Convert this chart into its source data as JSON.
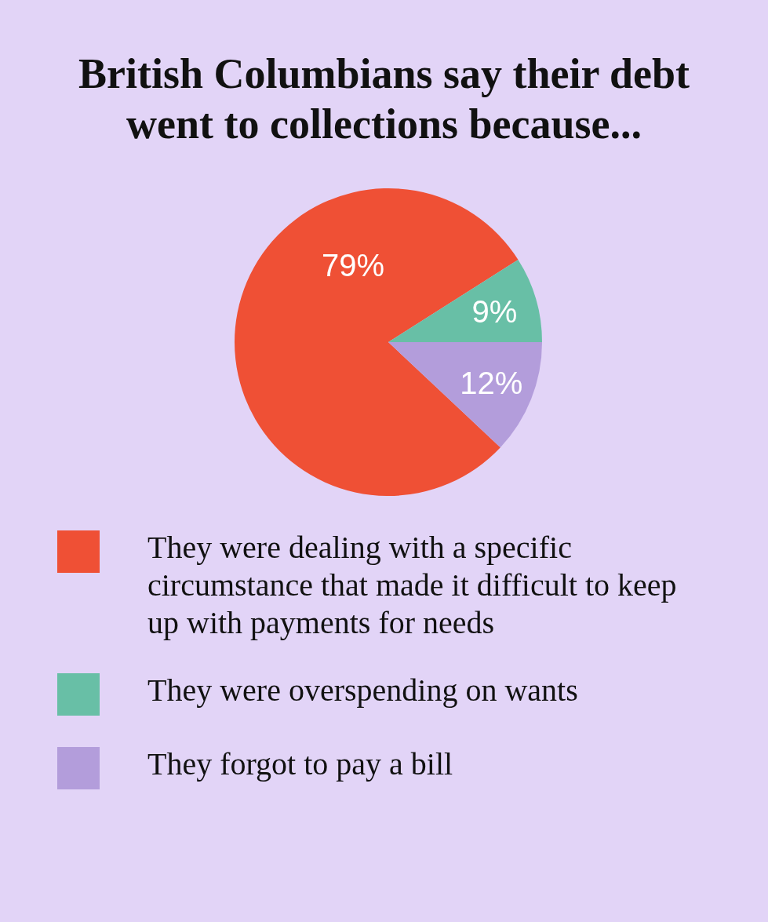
{
  "chart_data": {
    "type": "pie",
    "title": "British Columbians say their debt went to collections because...",
    "categories": [
      "They were dealing with a specific circumstance that made it difficult to keep up with payments for needs",
      "They were overspending on wants",
      "They forgot to pay a bill"
    ],
    "values": [
      79,
      9,
      12
    ],
    "value_labels": [
      "79%",
      "9%",
      "12%"
    ],
    "colors": [
      "#ef5035",
      "#68bfa6",
      "#b39ddb"
    ],
    "legend": "bottom"
  }
}
